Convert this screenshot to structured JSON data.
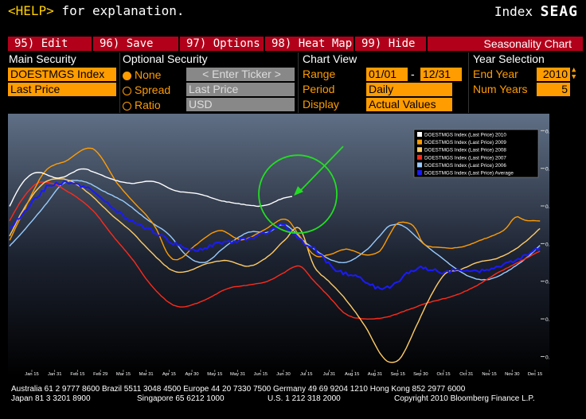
{
  "header": {
    "help_key": "<HELP>",
    "help_text": " for explanation.",
    "function_prefix": "Index",
    "function_code": "SEAG"
  },
  "menu": {
    "edit": "95) Edit",
    "save": "96) Save",
    "options": "97) Options",
    "heatmap": "98) Heat Map",
    "hide": "99) Hide",
    "title": "Seasonality Chart"
  },
  "main_security": {
    "title": "Main Security",
    "ticker": "DOESTMGS Index",
    "field": "Last Price"
  },
  "optional_security": {
    "title": "Optional Security",
    "options": [
      "None",
      "Spread",
      "Ratio"
    ],
    "selected": "None",
    "ticker_placeholder": "< Enter Ticker >",
    "field": "Last Price",
    "currency": "USD"
  },
  "chart_view": {
    "title": "Chart View",
    "range_label": "Range",
    "range_from": "01/01",
    "range_dash": "-",
    "range_to": "12/31",
    "period_label": "Period",
    "period_value": "Daily",
    "display_label": "Display",
    "display_value": "Actual Values"
  },
  "year_selection": {
    "title": "Year Selection",
    "end_year_label": "End Year",
    "end_year": "2010",
    "num_years_label": "Num Years",
    "num_years": "5"
  },
  "footer": {
    "line1": "Australia 61 2 9777 8600 Brazil 5511 3048 4500 Europe 44 20 7330 7500 Germany 49 69 9204 1210 Hong Kong 852 2977 6000",
    "line2a": "Japan 81 3 3201 8900",
    "line2b": "Singapore 65 6212 1000",
    "line2c": "U.S. 1 212 318 2000",
    "line2d": "Copyright 2010 Bloomberg Finance L.P."
  },
  "chart_data": {
    "type": "line",
    "x_tick_labels": [
      "Jan 15",
      "Jan 31",
      "Feb 15",
      "Feb 29",
      "Mar 15",
      "Mar 31",
      "Apr 15",
      "Apr 30",
      "May 15",
      "May 31",
      "Jun 15",
      "Jun 30",
      "Jul 15",
      "Jul 31",
      "Aug 15",
      "Aug 31",
      "Sep 15",
      "Sep 30",
      "Oct 15",
      "Oct 31",
      "Nov 15",
      "Nov 30",
      "Dec 15"
    ],
    "y_ticks": [
      0.18,
      0.19,
      0.2,
      0.21,
      0.22,
      0.23,
      0.24
    ],
    "y_tick_labels": [
      "0.18m",
      "0.19m",
      "0.2m",
      "0.21m",
      "0.22m",
      "0.23m",
      "0.24m"
    ],
    "ylim": [
      0.1765,
      0.2445
    ],
    "x_range_day": [
      1,
      366
    ],
    "legend_position": "top-right",
    "series": [
      {
        "name": "DOESTMGS Index (Last Price) 2010",
        "color": "#ffffff",
        "points": [
          [
            1,
            0.2199
          ],
          [
            10,
            0.2262
          ],
          [
            20,
            0.2289
          ],
          [
            35,
            0.2274
          ],
          [
            50,
            0.2298
          ],
          [
            60,
            0.2288
          ],
          [
            72,
            0.227
          ],
          [
            85,
            0.226
          ],
          [
            100,
            0.2265
          ],
          [
            115,
            0.224
          ],
          [
            130,
            0.2233
          ],
          [
            145,
            0.2215
          ],
          [
            160,
            0.2205
          ],
          [
            175,
            0.22
          ],
          [
            187,
            0.2218
          ],
          [
            195,
            0.2225
          ]
        ]
      },
      {
        "name": "DOESTMGS Index (Last Price) 2009",
        "color": "#ff9c00",
        "points": [
          [
            1,
            0.2108
          ],
          [
            10,
            0.218
          ],
          [
            25,
            0.229
          ],
          [
            40,
            0.232
          ],
          [
            58,
            0.2352
          ],
          [
            75,
            0.226
          ],
          [
            85,
            0.2215
          ],
          [
            100,
            0.215
          ],
          [
            110,
            0.207
          ],
          [
            118,
            0.206
          ],
          [
            130,
            0.21
          ],
          [
            145,
            0.2135
          ],
          [
            160,
            0.211
          ],
          [
            175,
            0.2135
          ],
          [
            190,
            0.2165
          ],
          [
            200,
            0.212
          ],
          [
            210,
            0.207
          ],
          [
            220,
            0.207
          ],
          [
            232,
            0.2085
          ],
          [
            245,
            0.207
          ],
          [
            255,
            0.208
          ],
          [
            262,
            0.2125
          ],
          [
            268,
            0.2155
          ],
          [
            278,
            0.2148
          ],
          [
            285,
            0.21
          ],
          [
            295,
            0.209
          ],
          [
            310,
            0.209
          ],
          [
            325,
            0.211
          ],
          [
            340,
            0.2135
          ],
          [
            348,
            0.217
          ],
          [
            355,
            0.2162
          ],
          [
            365,
            0.216
          ]
        ]
      },
      {
        "name": "DOESTMGS Index (Last Price) 2008",
        "color": "#ffcc66",
        "points": [
          [
            1,
            0.212
          ],
          [
            12,
            0.22
          ],
          [
            25,
            0.2262
          ],
          [
            40,
            0.227
          ],
          [
            55,
            0.2235
          ],
          [
            70,
            0.218
          ],
          [
            85,
            0.213
          ],
          [
            100,
            0.207
          ],
          [
            112,
            0.203
          ],
          [
            122,
            0.2025
          ],
          [
            135,
            0.2045
          ],
          [
            150,
            0.2055
          ],
          [
            165,
            0.204
          ],
          [
            178,
            0.2065
          ],
          [
            190,
            0.211
          ],
          [
            200,
            0.214
          ],
          [
            210,
            0.204
          ],
          [
            220,
            0.2
          ],
          [
            232,
            0.195
          ],
          [
            245,
            0.188
          ],
          [
            255,
            0.181
          ],
          [
            262,
            0.1785
          ],
          [
            270,
            0.18
          ],
          [
            280,
            0.188
          ],
          [
            290,
            0.196
          ],
          [
            300,
            0.202
          ],
          [
            310,
            0.203
          ],
          [
            322,
            0.205
          ],
          [
            335,
            0.206
          ],
          [
            350,
            0.209
          ],
          [
            365,
            0.214
          ]
        ]
      },
      {
        "name": "DOESTMGS Index (Last Price) 2007",
        "color": "#ff2a1a",
        "points": [
          [
            1,
            0.216
          ],
          [
            10,
            0.222
          ],
          [
            20,
            0.226
          ],
          [
            30,
            0.226
          ],
          [
            38,
            0.2245
          ],
          [
            50,
            0.2215
          ],
          [
            60,
            0.218
          ],
          [
            72,
            0.212
          ],
          [
            85,
            0.206
          ],
          [
            98,
            0.199
          ],
          [
            110,
            0.1945
          ],
          [
            120,
            0.1932
          ],
          [
            135,
            0.195
          ],
          [
            150,
            0.198
          ],
          [
            165,
            0.199
          ],
          [
            178,
            0.2
          ],
          [
            188,
            0.202
          ],
          [
            200,
            0.204
          ],
          [
            210,
            0.2
          ],
          [
            220,
            0.196
          ],
          [
            232,
            0.1912
          ],
          [
            245,
            0.19
          ],
          [
            260,
            0.1905
          ],
          [
            275,
            0.1925
          ],
          [
            290,
            0.1945
          ],
          [
            305,
            0.196
          ],
          [
            320,
            0.1985
          ],
          [
            335,
            0.202
          ],
          [
            350,
            0.205
          ],
          [
            365,
            0.208
          ]
        ]
      },
      {
        "name": "DOESTMGS Index (Last Price) 2006",
        "color": "#99ccff",
        "points": [
          [
            1,
            0.2093
          ],
          [
            12,
            0.214
          ],
          [
            25,
            0.22
          ],
          [
            38,
            0.226
          ],
          [
            52,
            0.2265
          ],
          [
            65,
            0.224
          ],
          [
            80,
            0.221
          ],
          [
            95,
            0.2165
          ],
          [
            110,
            0.2125
          ],
          [
            122,
            0.207
          ],
          [
            135,
            0.205
          ],
          [
            150,
            0.2095
          ],
          [
            165,
            0.213
          ],
          [
            178,
            0.213
          ],
          [
            190,
            0.215
          ],
          [
            205,
            0.21
          ],
          [
            220,
            0.206
          ],
          [
            232,
            0.205
          ],
          [
            245,
            0.208
          ],
          [
            255,
            0.212
          ],
          [
            262,
            0.2148
          ],
          [
            272,
            0.2145
          ],
          [
            285,
            0.21
          ],
          [
            295,
            0.207
          ],
          [
            305,
            0.204
          ],
          [
            318,
            0.201
          ],
          [
            330,
            0.2005
          ],
          [
            342,
            0.2025
          ],
          [
            355,
            0.206
          ],
          [
            365,
            0.2095
          ]
        ]
      },
      {
        "name": "DOESTMGS Index (Last Price) Average",
        "color": "#1a1aff",
        "points": [
          [
            1,
            0.214
          ],
          [
            10,
            0.218
          ],
          [
            20,
            0.2225
          ],
          [
            30,
            0.2257
          ],
          [
            45,
            0.2258
          ],
          [
            58,
            0.224
          ],
          [
            70,
            0.22
          ],
          [
            85,
            0.216
          ],
          [
            100,
            0.213
          ],
          [
            115,
            0.21
          ],
          [
            130,
            0.2085
          ],
          [
            145,
            0.21
          ],
          [
            160,
            0.211
          ],
          [
            175,
            0.2125
          ],
          [
            188,
            0.215
          ],
          [
            200,
            0.211
          ],
          [
            212,
            0.208
          ],
          [
            225,
            0.203
          ],
          [
            240,
            0.201
          ],
          [
            252,
            0.1985
          ],
          [
            265,
            0.199
          ],
          [
            275,
            0.2025
          ],
          [
            285,
            0.2035
          ],
          [
            298,
            0.2025
          ],
          [
            310,
            0.203
          ],
          [
            322,
            0.2025
          ],
          [
            335,
            0.2035
          ],
          [
            348,
            0.2055
          ],
          [
            358,
            0.2075
          ],
          [
            365,
            0.209
          ]
        ]
      }
    ],
    "annotation": {
      "type": "circle-and-arrow",
      "color": "#22dd22",
      "target_day": 195,
      "target_value": 0.2225
    }
  }
}
